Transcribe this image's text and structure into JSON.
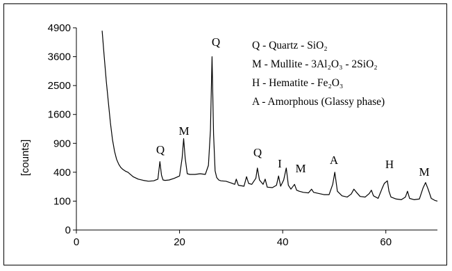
{
  "chart_data": {
    "type": "line",
    "ylabel": "[counts]",
    "xlabel": "",
    "x_ticks": [
      0,
      20,
      40,
      60
    ],
    "y_ticks": [
      0,
      100,
      400,
      900,
      1600,
      2500,
      3600,
      4900
    ],
    "y_tick_labels": [
      "0",
      "100",
      "400",
      "900",
      "1600",
      "2500",
      "3600",
      "4900"
    ],
    "y_scale": "sqrt",
    "xlim": [
      0,
      70
    ],
    "ylim": [
      0,
      4900
    ],
    "grid": false,
    "series": [
      {
        "x": [
          5,
          5.4,
          5.8,
          6.2,
          6.6,
          7.0,
          7.4,
          7.8,
          8.2,
          8.6,
          9.0,
          9.5,
          10,
          11,
          12,
          13,
          14,
          15,
          15.8,
          16.2,
          16.5,
          16.8,
          17.2,
          18,
          19,
          20,
          20.5,
          20.8,
          21.1,
          21.5,
          22,
          23,
          24,
          25,
          25.6,
          26.0,
          26.3,
          26.6,
          26.9,
          27.2,
          27.6,
          28,
          29,
          30,
          30.7,
          31.0,
          31.4,
          32.5,
          33.0,
          33.4,
          34,
          34.8,
          35.1,
          35.5,
          36.2,
          36.6,
          37,
          38,
          38.8,
          39.2,
          39.6,
          40.2,
          40.7,
          41.1,
          41.6,
          42.3,
          42.7,
          43.2,
          44,
          45,
          45.6,
          46,
          47,
          48,
          49,
          49.7,
          50.1,
          50.6,
          51.5,
          52.5,
          53.3,
          53.8,
          54.3,
          55,
          56,
          56.8,
          57.2,
          57.6,
          58.5,
          59.3,
          59.7,
          60.3,
          60.6,
          61,
          62,
          63,
          63.8,
          64.2,
          64.6,
          65.5,
          66.5,
          67.2,
          67.7,
          68.2,
          68.8,
          69.5,
          70
        ],
        "y": [
          4760,
          3600,
          2650,
          1950,
          1380,
          980,
          740,
          600,
          520,
          470,
          440,
          415,
          400,
          340,
          310,
          295,
          285,
          290,
          310,
          560,
          360,
          300,
          295,
          300,
          320,
          350,
          620,
          1000,
          620,
          380,
          370,
          370,
          380,
          370,
          500,
          1200,
          3600,
          1100,
          420,
          330,
          300,
          290,
          285,
          265,
          250,
          310,
          240,
          230,
          340,
          260,
          250,
          320,
          460,
          300,
          250,
          310,
          220,
          215,
          240,
          350,
          230,
          300,
          460,
          240,
          200,
          250,
          190,
          180,
          170,
          165,
          200,
          170,
          160,
          150,
          150,
          250,
          400,
          180,
          140,
          130,
          155,
          200,
          170,
          135,
          130,
          160,
          190,
          140,
          120,
          210,
          260,
          290,
          180,
          130,
          115,
          110,
          130,
          180,
          120,
          110,
          115,
          210,
          270,
          200,
          120,
          105,
          100
        ]
      }
    ],
    "peak_labels": [
      "Q",
      "M",
      "Q",
      "Q",
      "I",
      "M",
      "A",
      "H",
      "M"
    ],
    "legend": [
      "Q - Quartz - SiO₂",
      "M - Mullite - 3Al₂O₃ - 2SiO₂",
      "H - Hematite - Fe₂O₃",
      "A - Amorphous (Glassy phase)"
    ],
    "legend_position": "top-right"
  }
}
